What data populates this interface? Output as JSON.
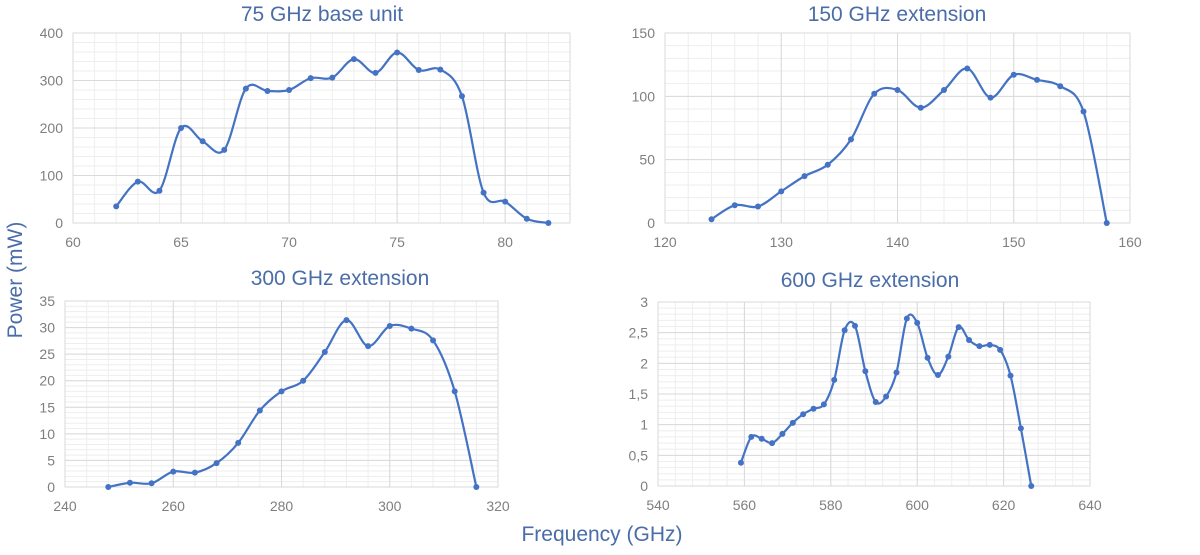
{
  "ylabel": "Power (mW)",
  "xlabel": "Frequency (GHz)",
  "colors": {
    "line": "#4472c4",
    "title": "#4a6da8",
    "grid_major": "#d9d9d9",
    "grid_minor": "#eeeeee"
  },
  "chart_data": [
    {
      "type": "line",
      "title": "75 GHz base unit",
      "xlim": [
        60,
        83
      ],
      "ylim": [
        0,
        400
      ],
      "xticks": [
        60,
        65,
        70,
        75,
        80
      ],
      "yticks": [
        0,
        100,
        200,
        300,
        400
      ],
      "grid": true,
      "x": [
        62,
        63,
        64,
        65,
        66,
        67,
        68,
        69,
        70,
        71,
        72,
        73,
        74,
        75,
        76,
        77,
        78,
        79,
        80,
        81,
        82
      ],
      "y": [
        35,
        87,
        68,
        200,
        172,
        154,
        283,
        278,
        280,
        305,
        306,
        345,
        316,
        359,
        322,
        323,
        267,
        64,
        45,
        9,
        0
      ]
    },
    {
      "type": "line",
      "title": "150 GHz extension",
      "xlim": [
        120,
        160
      ],
      "ylim": [
        0,
        150
      ],
      "xticks": [
        120,
        130,
        140,
        150,
        160
      ],
      "yticks": [
        0,
        50,
        100,
        150
      ],
      "grid": true,
      "x": [
        124,
        126,
        128,
        130,
        132,
        134,
        136,
        138,
        140,
        142,
        144,
        146,
        148,
        150,
        152,
        154,
        156,
        158
      ],
      "y": [
        3,
        14,
        13,
        25,
        37,
        46,
        66,
        102,
        105,
        91,
        105,
        122,
        99,
        117,
        113,
        108,
        88,
        0
      ]
    },
    {
      "type": "line",
      "title": "300 GHz extension",
      "xlim": [
        240,
        320
      ],
      "ylim": [
        0,
        35
      ],
      "xticks": [
        240,
        260,
        280,
        300,
        320
      ],
      "yticks": [
        0,
        5,
        10,
        15,
        20,
        25,
        30,
        35
      ],
      "grid": true,
      "x": [
        248,
        252,
        256,
        260,
        264,
        268,
        272,
        276,
        280,
        284,
        288,
        292,
        296,
        300,
        304,
        308,
        312,
        316
      ],
      "y": [
        0,
        0.8,
        0.7,
        2.9,
        2.7,
        4.5,
        8.3,
        14.4,
        18,
        20,
        25.4,
        31.4,
        26.5,
        30.3,
        29.8,
        27.6,
        18,
        0
      ]
    },
    {
      "type": "line",
      "title": "600 GHz extension",
      "xlim": [
        540,
        640
      ],
      "ylim": [
        0,
        3
      ],
      "xticks": [
        540,
        560,
        580,
        600,
        620,
        640
      ],
      "yticks": [
        0,
        0.5,
        1,
        1.5,
        2,
        2.5,
        3
      ],
      "ytick_labels": [
        "0",
        "0,5",
        "1",
        "1,5",
        "2",
        "2,5",
        "3"
      ],
      "grid": true,
      "x": [
        559.2,
        561.6,
        564,
        566.4,
        568.8,
        571.2,
        573.6,
        576,
        578.4,
        580.8,
        583.2,
        585.6,
        588,
        590.4,
        592.8,
        595.2,
        597.6,
        600,
        602.4,
        604.8,
        607.2,
        609.6,
        612,
        614.4,
        616.8,
        619.2,
        621.6,
        624,
        626.4
      ],
      "y": [
        0.38,
        0.8,
        0.77,
        0.7,
        0.85,
        1.03,
        1.17,
        1.26,
        1.33,
        1.73,
        2.54,
        2.61,
        1.87,
        1.37,
        1.46,
        1.85,
        2.73,
        2.66,
        2.09,
        1.81,
        2.11,
        2.59,
        2.38,
        2.28,
        2.3,
        2.22,
        1.8,
        0.94,
        0
      ]
    }
  ]
}
